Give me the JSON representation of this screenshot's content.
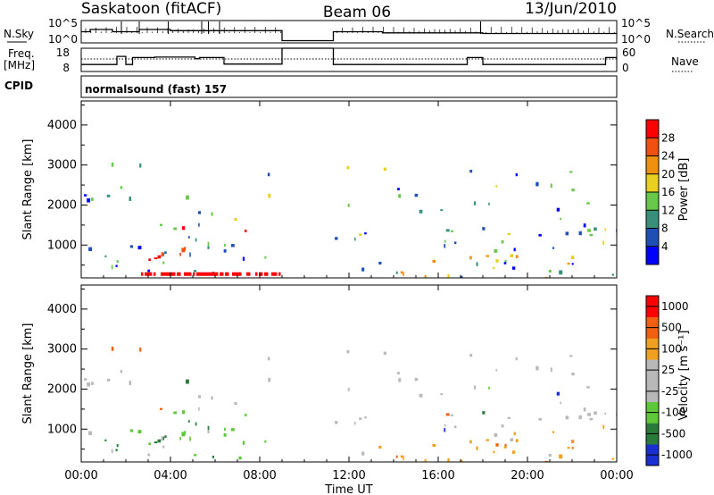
{
  "header": {
    "station": "Saskatoon (fitACF)",
    "beam": "Beam 06",
    "date": "13/Jun/2010"
  },
  "top_panels": {
    "nsky_label": "N.Sky",
    "nsky_ticks": [
      "10^5",
      "10^0"
    ],
    "nsearch_label": "N.Search",
    "nsearch_ticks": [
      "10^5",
      "10^0"
    ],
    "freq_label": "Freq.",
    "freq_unit": "[MHz]",
    "freq_ticks": [
      "18",
      "8"
    ],
    "nave_label": "Nave",
    "nave_ticks": [
      "60",
      "0"
    ],
    "cpid_label": "CPID",
    "cpid_text": "normalsound (fast) 157"
  },
  "colors": {
    "power_scale": [
      "#0000ff",
      "#1f4fb4",
      "#3a8f7a",
      "#68c84a",
      "#e8d020",
      "#f09010",
      "#f05010",
      "#ff0000"
    ],
    "velocity_scale": [
      "#1a2fd0",
      "#2a7a3a",
      "#5ec83a",
      "#b8b8b8",
      "#b8b8b8",
      "#f0a020",
      "#f06010",
      "#ff0000"
    ]
  },
  "chart_data": [
    {
      "type": "heatmap",
      "name": "power",
      "ylabel": "Slant Range [km]",
      "yticks": [
        "1000",
        "2000",
        "3000",
        "4000"
      ],
      "ylim": [
        180,
        4600
      ],
      "xlim": [
        0,
        24
      ],
      "colorbar_label": "Power [dB]",
      "colorbar_ticks": [
        "4",
        "8",
        "12",
        "16",
        "20",
        "24",
        "28"
      ],
      "colorbar_range": [
        0,
        32
      ]
    },
    {
      "type": "heatmap",
      "name": "velocity",
      "ylabel": "Slant Range [km]",
      "yticks": [
        "1000",
        "2000",
        "3000",
        "4000"
      ],
      "ylim": [
        180,
        4600
      ],
      "xlim": [
        0,
        24
      ],
      "colorbar_label": "Velocity [m s⁻¹]",
      "colorbar_ticks": [
        "1000",
        "500",
        "100",
        "25",
        "-25",
        "-100",
        "-500",
        "-1000"
      ]
    }
  ],
  "xaxis": {
    "label": "Time UT",
    "ticks": [
      "00:00",
      "04:00",
      "08:00",
      "12:00",
      "16:00",
      "20:00",
      "00:00"
    ]
  }
}
